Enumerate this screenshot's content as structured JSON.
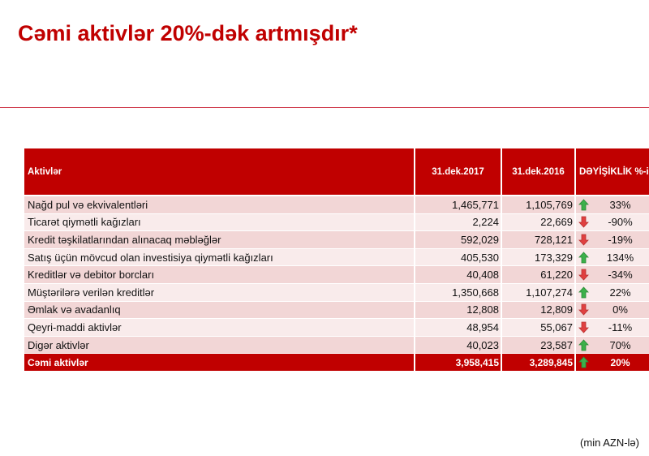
{
  "header": {
    "title": "Cəmi aktivlər 20%-dək artmışdır*"
  },
  "table": {
    "columns": [
      "Aktivlər",
      "31.dek.2017",
      "31.dek.2016",
      "DƏYİŞİKLİK %-i"
    ],
    "rows": [
      [
        "Nağd pul və ekvivalentləri",
        "1,465,771",
        "1,105,769",
        "33%"
      ],
      [
        "Ticarət qiymətli kağızları",
        "2,224",
        "22,669",
        "-90%"
      ],
      [
        "Kredit təşkilatlarından alınacaq məbləğlər",
        "592,029",
        "728,121",
        "-19%"
      ],
      [
        "Satış üçün mövcud olan investisiya qiymətli kağızları",
        "405,530",
        "173,329",
        "134%"
      ],
      [
        "Kreditlər və debitor borcları",
        "40,408",
        "61,220",
        "-34%"
      ],
      [
        "Müştərilərə verilən kreditlər",
        "1,350,668",
        "1,107,274",
        "22%"
      ],
      [
        "Əmlak və avadanlıq",
        "12,808",
        "12,809",
        "0%"
      ],
      [
        "Qeyri-maddi aktivlər",
        "48,954",
        "55,067",
        "-11%"
      ],
      [
        "Digər aktivlər",
        "40,023",
        "23,587",
        "70%"
      ]
    ],
    "total": [
      "Cəmi aktivlər",
      "3,958,415",
      "3,289,845",
      "20%"
    ]
  },
  "footnote": "(min AZN-lə)"
}
